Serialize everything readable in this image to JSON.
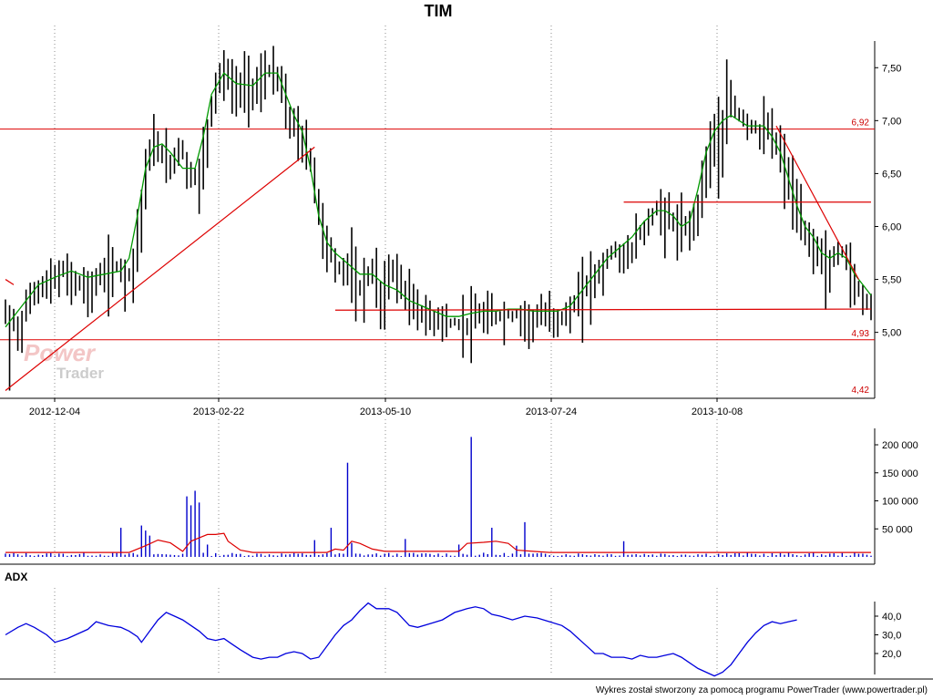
{
  "chart_data": [
    {
      "type": "ohlc",
      "title": "TIM",
      "xlabel": "",
      "ylabel": "",
      "x_ticks": [
        "2012-12-04",
        "2013-02-22",
        "2013-05-10",
        "2013-07-24",
        "2013-10-08"
      ],
      "y_ticks": [
        "5,00",
        "5,50",
        "6,00",
        "6,50",
        "7,00",
        "7,50"
      ],
      "ylim": [
        4.42,
        7.95
      ],
      "grid": true,
      "price_path": [
        [
          0,
          5.2
        ],
        [
          3,
          5.05
        ],
        [
          5,
          5.32
        ],
        [
          8,
          5.45
        ],
        [
          11,
          5.55
        ],
        [
          14,
          5.6
        ],
        [
          17,
          5.52
        ],
        [
          20,
          5.45
        ],
        [
          24,
          5.6
        ],
        [
          27,
          5.65
        ],
        [
          30,
          5.55
        ],
        [
          32,
          6.0
        ],
        [
          34,
          6.65
        ],
        [
          36,
          6.85
        ],
        [
          39,
          6.6
        ],
        [
          42,
          6.8
        ],
        [
          45,
          6.45
        ],
        [
          47,
          6.55
        ],
        [
          49,
          7.0
        ],
        [
          51,
          7.45
        ],
        [
          53,
          7.5
        ],
        [
          55,
          7.3
        ],
        [
          58,
          7.4
        ],
        [
          61,
          7.35
        ],
        [
          63,
          7.5
        ],
        [
          66,
          7.45
        ],
        [
          68,
          7.1
        ],
        [
          70,
          6.95
        ],
        [
          72,
          6.85
        ],
        [
          74,
          6.6
        ],
        [
          76,
          6.1
        ],
        [
          78,
          5.85
        ],
        [
          80,
          5.6
        ],
        [
          83,
          5.7
        ],
        [
          85,
          5.4
        ],
        [
          87,
          5.55
        ],
        [
          89,
          5.6
        ],
        [
          91,
          5.3
        ],
        [
          93,
          5.65
        ],
        [
          95,
          5.55
        ],
        [
          97,
          5.35
        ],
        [
          99,
          5.3
        ],
        [
          101,
          5.2
        ],
        [
          103,
          5.15
        ],
        [
          105,
          5.2
        ],
        [
          107,
          5.1
        ],
        [
          110,
          5.1
        ],
        [
          113,
          5.15
        ],
        [
          116,
          5.2
        ],
        [
          119,
          5.18
        ],
        [
          122,
          5.18
        ],
        [
          125,
          5.2
        ],
        [
          127,
          5.15
        ],
        [
          130,
          5.2
        ],
        [
          133,
          5.2
        ],
        [
          136,
          5.2
        ],
        [
          138,
          5.3
        ],
        [
          140,
          5.45
        ],
        [
          142,
          5.55
        ],
        [
          144,
          5.6
        ],
        [
          146,
          5.75
        ],
        [
          148,
          5.8
        ],
        [
          150,
          5.7
        ],
        [
          152,
          5.85
        ],
        [
          154,
          6.0
        ],
        [
          156,
          6.1
        ],
        [
          158,
          6.2
        ],
        [
          160,
          6.15
        ],
        [
          162,
          6.05
        ],
        [
          164,
          6.0
        ],
        [
          166,
          6.05
        ],
        [
          168,
          6.3
        ],
        [
          170,
          6.7
        ],
        [
          172,
          7.0
        ],
        [
          173,
          6.6
        ],
        [
          175,
          7.3
        ],
        [
          177,
          7.1
        ],
        [
          179,
          7.05
        ],
        [
          181,
          6.95
        ],
        [
          183,
          6.95
        ],
        [
          185,
          6.95
        ],
        [
          187,
          6.8
        ],
        [
          189,
          6.55
        ],
        [
          191,
          6.3
        ],
        [
          193,
          6.0
        ],
        [
          195,
          5.9
        ],
        [
          197,
          5.85
        ],
        [
          199,
          5.6
        ],
        [
          201,
          5.75
        ],
        [
          203,
          5.8
        ],
        [
          205,
          5.55
        ],
        [
          207,
          5.4
        ],
        [
          209,
          5.3
        ],
        [
          210,
          5.3
        ]
      ],
      "moving_average": [
        [
          0,
          5.05
        ],
        [
          4,
          5.25
        ],
        [
          8,
          5.45
        ],
        [
          12,
          5.52
        ],
        [
          16,
          5.58
        ],
        [
          20,
          5.52
        ],
        [
          24,
          5.55
        ],
        [
          28,
          5.58
        ],
        [
          30,
          5.7
        ],
        [
          32,
          6.1
        ],
        [
          34,
          6.55
        ],
        [
          36,
          6.75
        ],
        [
          38,
          6.78
        ],
        [
          40,
          6.7
        ],
        [
          43,
          6.55
        ],
        [
          46,
          6.55
        ],
        [
          48,
          6.85
        ],
        [
          50,
          7.25
        ],
        [
          53,
          7.45
        ],
        [
          56,
          7.35
        ],
        [
          60,
          7.33
        ],
        [
          63,
          7.45
        ],
        [
          66,
          7.45
        ],
        [
          68,
          7.25
        ],
        [
          70,
          7.05
        ],
        [
          72,
          6.9
        ],
        [
          74,
          6.55
        ],
        [
          76,
          6.1
        ],
        [
          78,
          5.85
        ],
        [
          80,
          5.75
        ],
        [
          83,
          5.65
        ],
        [
          86,
          5.55
        ],
        [
          89,
          5.55
        ],
        [
          92,
          5.45
        ],
        [
          95,
          5.4
        ],
        [
          98,
          5.3
        ],
        [
          101,
          5.25
        ],
        [
          104,
          5.2
        ],
        [
          107,
          5.15
        ],
        [
          110,
          5.15
        ],
        [
          113,
          5.18
        ],
        [
          116,
          5.2
        ],
        [
          119,
          5.2
        ],
        [
          122,
          5.22
        ],
        [
          125,
          5.22
        ],
        [
          128,
          5.2
        ],
        [
          131,
          5.2
        ],
        [
          134,
          5.2
        ],
        [
          137,
          5.25
        ],
        [
          140,
          5.4
        ],
        [
          143,
          5.55
        ],
        [
          146,
          5.7
        ],
        [
          149,
          5.8
        ],
        [
          152,
          5.9
        ],
        [
          155,
          6.05
        ],
        [
          158,
          6.15
        ],
        [
          160,
          6.15
        ],
        [
          162,
          6.1
        ],
        [
          164,
          6.0
        ],
        [
          166,
          6.05
        ],
        [
          168,
          6.35
        ],
        [
          170,
          6.7
        ],
        [
          172,
          6.9
        ],
        [
          174,
          7.0
        ],
        [
          176,
          7.05
        ],
        [
          178,
          7.0
        ],
        [
          180,
          6.95
        ],
        [
          182,
          6.95
        ],
        [
          184,
          6.95
        ],
        [
          186,
          6.85
        ],
        [
          188,
          6.7
        ],
        [
          190,
          6.45
        ],
        [
          192,
          6.2
        ],
        [
          194,
          6.0
        ],
        [
          196,
          5.9
        ],
        [
          198,
          5.75
        ],
        [
          200,
          5.7
        ],
        [
          202,
          5.75
        ],
        [
          204,
          5.7
        ],
        [
          206,
          5.55
        ],
        [
          208,
          5.45
        ],
        [
          210,
          5.35
        ]
      ],
      "levels": [
        {
          "value": 6.92,
          "label": "6,92",
          "color": "#dd0000"
        },
        {
          "value": 4.93,
          "label": "4,93",
          "color": "#dd0000"
        }
      ],
      "min_label": "4,42",
      "trendlines": [
        {
          "x1": 0,
          "y1": 4.45,
          "x2": 75,
          "y2": 6.75
        },
        {
          "x1": 80,
          "y1": 5.21,
          "x2": 210,
          "y2": 5.22
        },
        {
          "x1": 150,
          "y1": 6.23,
          "x2": 210,
          "y2": 6.23
        },
        {
          "x1": 187,
          "y1": 6.95,
          "x2": 207,
          "y2": 5.5
        },
        {
          "x1": 0,
          "y1": 5.5,
          "x2": 2,
          "y2": 5.45
        }
      ],
      "watermark": [
        "Power",
        "Trader"
      ],
      "colors": {
        "bars": "#000000",
        "ma": "#009900",
        "levels": "#dd0000",
        "grid": "#888888"
      }
    },
    {
      "type": "bar",
      "title": "",
      "y_ticks": [
        "50 000",
        "100 000",
        "150 000",
        "200 000"
      ],
      "ylim": [
        0,
        230000
      ],
      "spikes": [
        {
          "i": 28,
          "v": 52000
        },
        {
          "i": 33,
          "v": 56000
        },
        {
          "i": 34,
          "v": 47000
        },
        {
          "i": 35,
          "v": 38000
        },
        {
          "i": 44,
          "v": 108000
        },
        {
          "i": 45,
          "v": 92000
        },
        {
          "i": 46,
          "v": 118000
        },
        {
          "i": 47,
          "v": 97000
        },
        {
          "i": 49,
          "v": 22000
        },
        {
          "i": 75,
          "v": 30000
        },
        {
          "i": 79,
          "v": 52000
        },
        {
          "i": 83,
          "v": 168000
        },
        {
          "i": 84,
          "v": 25000
        },
        {
          "i": 97,
          "v": 32000
        },
        {
          "i": 110,
          "v": 22000
        },
        {
          "i": 113,
          "v": 214000
        },
        {
          "i": 118,
          "v": 52000
        },
        {
          "i": 124,
          "v": 20000
        },
        {
          "i": 126,
          "v": 62000
        },
        {
          "i": 150,
          "v": 28000
        }
      ],
      "avg_line": [
        [
          0,
          8000
        ],
        [
          30,
          8000
        ],
        [
          34,
          20000
        ],
        [
          37,
          30000
        ],
        [
          40,
          25000
        ],
        [
          43,
          10000
        ],
        [
          45,
          28000
        ],
        [
          47,
          34000
        ],
        [
          49,
          40000
        ],
        [
          51,
          40000
        ],
        [
          53,
          42000
        ],
        [
          54,
          28000
        ],
        [
          57,
          12000
        ],
        [
          60,
          8000
        ],
        [
          78,
          8000
        ],
        [
          80,
          14000
        ],
        [
          82,
          12000
        ],
        [
          84,
          28000
        ],
        [
          86,
          24000
        ],
        [
          89,
          14000
        ],
        [
          92,
          10000
        ],
        [
          110,
          10000
        ],
        [
          112,
          24000
        ],
        [
          116,
          26000
        ],
        [
          119,
          28000
        ],
        [
          122,
          24000
        ],
        [
          124,
          12000
        ],
        [
          128,
          10000
        ],
        [
          132,
          8000
        ],
        [
          210,
          8000
        ]
      ],
      "colors": {
        "bars": "#0000cc",
        "avg": "#dd0000"
      }
    },
    {
      "type": "line",
      "title": "ADX",
      "y_ticks": [
        "20,0",
        "30,0",
        "40,0"
      ],
      "ylim": [
        6,
        51
      ],
      "series": [
        {
          "values": [
            [
              0,
              30
            ],
            [
              3,
              34
            ],
            [
              5,
              36
            ],
            [
              7,
              34
            ],
            [
              10,
              30
            ],
            [
              12,
              26
            ],
            [
              15,
              28
            ],
            [
              18,
              31
            ],
            [
              20,
              33
            ],
            [
              22,
              37
            ],
            [
              25,
              35
            ],
            [
              28,
              34
            ],
            [
              30,
              32
            ],
            [
              32,
              29
            ],
            [
              33,
              26
            ],
            [
              35,
              32
            ],
            [
              37,
              38
            ],
            [
              39,
              42
            ],
            [
              41,
              40
            ],
            [
              43,
              38
            ],
            [
              45,
              35
            ],
            [
              47,
              32
            ],
            [
              49,
              28
            ],
            [
              51,
              27
            ],
            [
              53,
              28
            ],
            [
              55,
              25
            ],
            [
              57,
              22
            ],
            [
              60,
              18
            ],
            [
              62,
              17
            ],
            [
              64,
              18
            ],
            [
              66,
              18
            ],
            [
              68,
              20
            ],
            [
              70,
              21
            ],
            [
              72,
              20
            ],
            [
              74,
              17
            ],
            [
              76,
              18
            ],
            [
              78,
              24
            ],
            [
              80,
              30
            ],
            [
              82,
              35
            ],
            [
              84,
              38
            ],
            [
              86,
              43
            ],
            [
              88,
              47
            ],
            [
              90,
              44
            ],
            [
              93,
              44
            ],
            [
              95,
              42
            ],
            [
              98,
              35
            ],
            [
              100,
              34
            ],
            [
              103,
              36
            ],
            [
              106,
              38
            ],
            [
              109,
              42
            ],
            [
              112,
              44
            ],
            [
              114,
              45
            ],
            [
              116,
              44
            ],
            [
              118,
              41
            ],
            [
              120,
              40
            ],
            [
              123,
              38
            ],
            [
              126,
              40
            ],
            [
              129,
              39
            ],
            [
              132,
              37
            ],
            [
              135,
              35
            ],
            [
              137,
              32
            ],
            [
              139,
              28
            ],
            [
              141,
              24
            ],
            [
              143,
              20
            ],
            [
              145,
              20
            ],
            [
              147,
              18
            ],
            [
              150,
              18
            ],
            [
              152,
              17
            ],
            [
              154,
              19
            ],
            [
              156,
              18
            ],
            [
              158,
              18
            ],
            [
              160,
              19
            ],
            [
              162,
              20
            ],
            [
              164,
              18
            ],
            [
              166,
              15
            ],
            [
              168,
              12
            ],
            [
              170,
              10
            ],
            [
              172,
              8
            ],
            [
              174,
              10
            ],
            [
              176,
              14
            ],
            [
              178,
              20
            ],
            [
              180,
              26
            ],
            [
              182,
              31
            ],
            [
              184,
              35
            ],
            [
              186,
              37
            ],
            [
              188,
              36
            ],
            [
              190,
              37
            ],
            [
              192,
              38
            ]
          ]
        }
      ],
      "colors": {
        "line": "#0000dd"
      }
    }
  ],
  "footer": "Wykres został stworzony za pomocą programu PowerTrader (www.powertrader.pl)"
}
